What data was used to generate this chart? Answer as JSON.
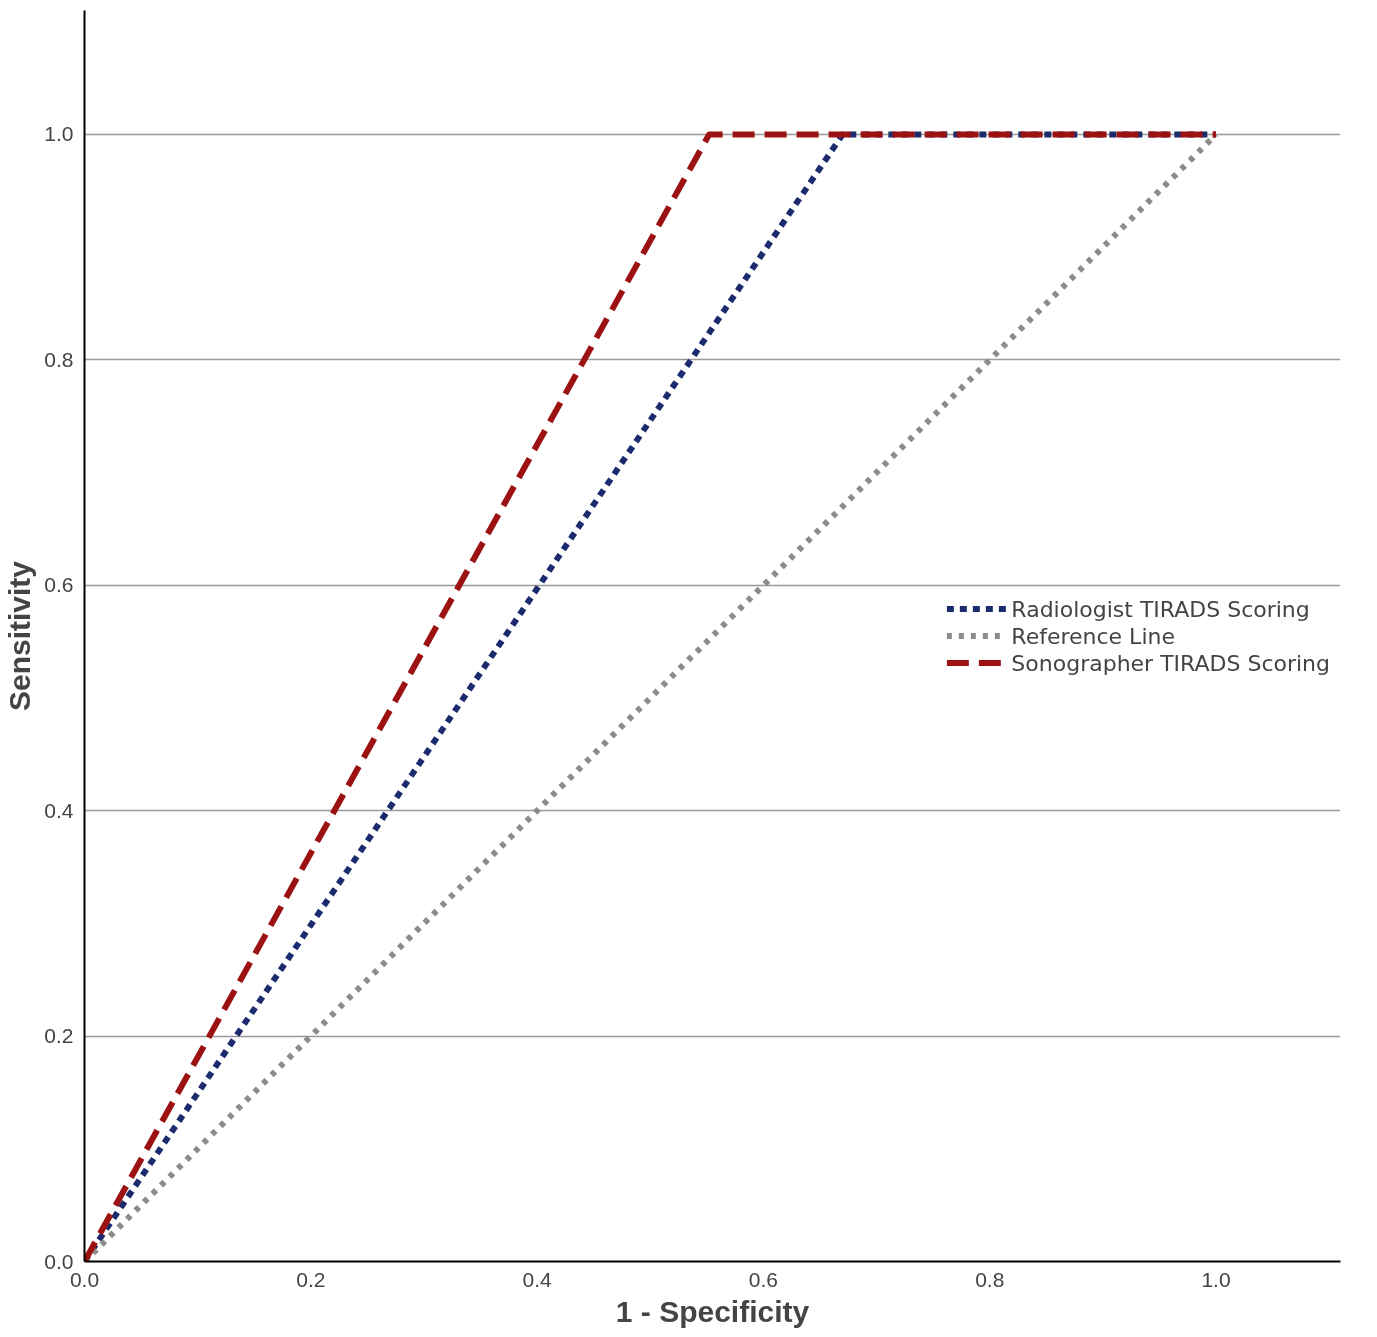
{
  "chart_data": {
    "type": "line",
    "xlabel": "1 - Specificity",
    "ylabel": "Sensitivity",
    "xlim": [
      0,
      1.11
    ],
    "ylim": [
      0,
      1.11
    ],
    "xticks": [
      {
        "value": 0,
        "label": "0.0"
      },
      0.2,
      0.4,
      0.6,
      0.8,
      {
        "value": 1,
        "label": "1.0"
      }
    ],
    "yticks": [
      {
        "value": 0,
        "label": "0.0"
      },
      0.2,
      0.4,
      0.6,
      0.8,
      {
        "value": 1,
        "label": "1.0"
      }
    ],
    "grid": "y",
    "legend": "right",
    "marker": "none",
    "series": [
      {
        "name": "Radiologist TIRADS Scoring",
        "color": "#1b2b6e",
        "line_style": "dashed",
        "x": [
          0,
          0.67,
          1
        ],
        "values": [
          0,
          1,
          1
        ]
      },
      {
        "name": "Reference Line",
        "color": "#8c8c8c",
        "line_style": "dotted",
        "x": [
          0,
          1
        ],
        "values": [
          0,
          1
        ]
      },
      {
        "name": "Sonographer TIRADS Scoring",
        "color": "#9c1212",
        "line_style": "dashed",
        "x": [
          0,
          0.552,
          1
        ],
        "values": [
          0,
          1,
          1
        ]
      }
    ]
  }
}
